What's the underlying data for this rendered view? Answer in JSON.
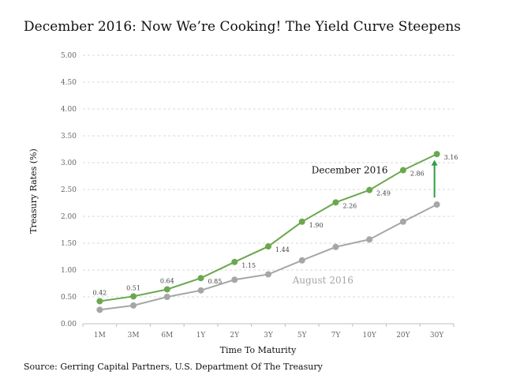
{
  "title": "December 2016: Now We’re Cooking!  The Yield Curve Steepens",
  "source": "Source: Gerring Capital Partners, U.S. Department Of The Treasury",
  "chart_data": {
    "type": "line",
    "xlabel": "Time To Maturity",
    "ylabel": "Treasury Rates (%)",
    "ylim": [
      0,
      5
    ],
    "yticks": [
      "0.00",
      "0.50",
      "1.00",
      "1.50",
      "2.00",
      "2.50",
      "3.00",
      "3.50",
      "4.00",
      "4.50",
      "5.00"
    ],
    "grid": true,
    "categories": [
      "1M",
      "3M",
      "6M",
      "1Y",
      "2Y",
      "3Y",
      "5Y",
      "7Y",
      "10Y",
      "20Y",
      "30Y"
    ],
    "series": [
      {
        "name": "December 2016",
        "color": "#6aa84f",
        "values": [
          0.42,
          0.51,
          0.64,
          0.85,
          1.15,
          1.44,
          1.9,
          2.26,
          2.49,
          2.86,
          3.16
        ],
        "labels": [
          "0.42",
          "0.51",
          "0.64",
          "0.85",
          "1.15",
          "1.44",
          "1.90",
          "2.26",
          "2.49",
          "2.86",
          "3.16"
        ]
      },
      {
        "name": "August 2016",
        "color": "#a6a6a6",
        "values": [
          0.26,
          0.34,
          0.5,
          0.62,
          0.82,
          0.92,
          1.18,
          1.43,
          1.57,
          1.9,
          2.22
        ]
      }
    ],
    "annotation_arrow": {
      "category": "30Y",
      "from": 2.35,
      "to": 3.05,
      "color": "#2e9e3f"
    }
  }
}
